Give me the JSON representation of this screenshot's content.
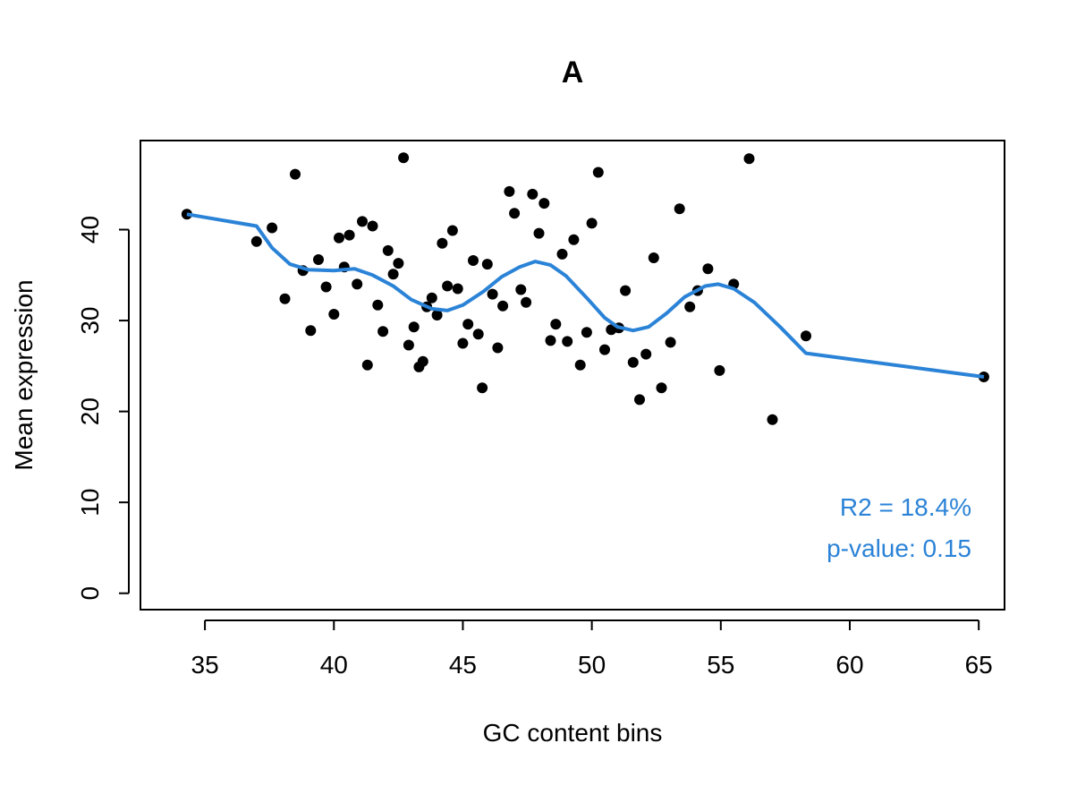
{
  "chart_data": {
    "type": "scatter",
    "title": "A",
    "xlabel": "GC content bins",
    "ylabel": "Mean expression",
    "xlim": [
      32.5,
      66
    ],
    "ylim": [
      -1.8,
      49.8
    ],
    "x_ticks": [
      35,
      40,
      45,
      50,
      55,
      60,
      65
    ],
    "y_ticks": [
      0,
      10,
      20,
      30,
      40
    ],
    "grid": false,
    "legend": "none",
    "colors": {
      "points": "#000000",
      "smooth": "#2b83d7",
      "annotation": "#2b83d7"
    },
    "annotations": [
      "R2 = 18.4%",
      "p-value: 0.15"
    ],
    "series": [
      {
        "kind": "points",
        "points": [
          [
            34.3,
            41.7
          ],
          [
            37.0,
            38.7
          ],
          [
            37.6,
            40.2
          ],
          [
            38.1,
            32.4
          ],
          [
            38.5,
            46.1
          ],
          [
            38.8,
            35.5
          ],
          [
            39.1,
            28.9
          ],
          [
            39.4,
            36.7
          ],
          [
            39.7,
            33.7
          ],
          [
            40.0,
            30.7
          ],
          [
            40.2,
            39.1
          ],
          [
            40.4,
            35.9
          ],
          [
            40.6,
            39.4
          ],
          [
            40.9,
            34.0
          ],
          [
            41.1,
            40.9
          ],
          [
            41.3,
            25.1
          ],
          [
            41.5,
            40.4
          ],
          [
            41.7,
            31.7
          ],
          [
            41.9,
            28.8
          ],
          [
            42.1,
            37.7
          ],
          [
            42.3,
            35.1
          ],
          [
            42.5,
            36.3
          ],
          [
            42.7,
            47.9
          ],
          [
            42.9,
            27.3
          ],
          [
            43.1,
            29.3
          ],
          [
            43.3,
            24.9
          ],
          [
            43.45,
            25.5
          ],
          [
            43.6,
            31.5
          ],
          [
            43.8,
            32.5
          ],
          [
            44.0,
            30.6
          ],
          [
            44.2,
            38.5
          ],
          [
            44.4,
            33.8
          ],
          [
            44.6,
            39.9
          ],
          [
            44.8,
            33.5
          ],
          [
            45.0,
            27.5
          ],
          [
            45.2,
            29.6
          ],
          [
            45.4,
            36.6
          ],
          [
            45.6,
            28.5
          ],
          [
            45.75,
            22.6
          ],
          [
            45.95,
            36.2
          ],
          [
            46.15,
            32.9
          ],
          [
            46.35,
            27.0
          ],
          [
            46.55,
            31.6
          ],
          [
            46.8,
            44.2
          ],
          [
            47.0,
            41.8
          ],
          [
            47.25,
            33.4
          ],
          [
            47.45,
            32.0
          ],
          [
            47.7,
            43.9
          ],
          [
            47.95,
            39.6
          ],
          [
            48.15,
            42.9
          ],
          [
            48.4,
            27.8
          ],
          [
            48.6,
            29.6
          ],
          [
            48.85,
            37.3
          ],
          [
            49.05,
            27.7
          ],
          [
            49.3,
            38.9
          ],
          [
            49.55,
            25.1
          ],
          [
            49.8,
            28.7
          ],
          [
            50.0,
            40.7
          ],
          [
            50.25,
            46.3
          ],
          [
            50.5,
            26.8
          ],
          [
            50.75,
            29.0
          ],
          [
            51.05,
            29.2
          ],
          [
            51.3,
            33.3
          ],
          [
            51.6,
            25.4
          ],
          [
            51.85,
            21.3
          ],
          [
            52.1,
            26.3
          ],
          [
            52.4,
            36.9
          ],
          [
            52.7,
            22.6
          ],
          [
            53.05,
            27.6
          ],
          [
            53.4,
            42.3
          ],
          [
            53.8,
            31.5
          ],
          [
            54.1,
            33.3
          ],
          [
            54.5,
            35.7
          ],
          [
            54.95,
            24.5
          ],
          [
            55.5,
            34.0
          ],
          [
            56.1,
            47.8
          ],
          [
            57.0,
            19.1
          ],
          [
            58.3,
            28.3
          ],
          [
            65.2,
            23.8
          ]
        ]
      },
      {
        "kind": "smooth-line",
        "points": [
          [
            34.3,
            41.7
          ],
          [
            37.0,
            40.4
          ],
          [
            37.6,
            38.0
          ],
          [
            38.3,
            36.2
          ],
          [
            39.0,
            35.6
          ],
          [
            40.0,
            35.5
          ],
          [
            40.8,
            35.7
          ],
          [
            41.5,
            35.0
          ],
          [
            42.3,
            33.8
          ],
          [
            43.0,
            32.3
          ],
          [
            43.8,
            31.3
          ],
          [
            44.4,
            31.1
          ],
          [
            45.0,
            31.7
          ],
          [
            45.8,
            33.2
          ],
          [
            46.5,
            34.8
          ],
          [
            47.2,
            35.9
          ],
          [
            47.8,
            36.5
          ],
          [
            48.4,
            36.1
          ],
          [
            49.0,
            34.9
          ],
          [
            49.8,
            32.5
          ],
          [
            50.5,
            30.3
          ],
          [
            51.0,
            29.3
          ],
          [
            51.6,
            28.9
          ],
          [
            52.2,
            29.3
          ],
          [
            52.9,
            30.8
          ],
          [
            53.6,
            32.6
          ],
          [
            54.4,
            33.8
          ],
          [
            54.9,
            34.0
          ],
          [
            55.5,
            33.5
          ],
          [
            56.3,
            32.0
          ],
          [
            57.3,
            29.3
          ],
          [
            58.3,
            26.4
          ],
          [
            65.2,
            23.8
          ]
        ]
      }
    ]
  }
}
